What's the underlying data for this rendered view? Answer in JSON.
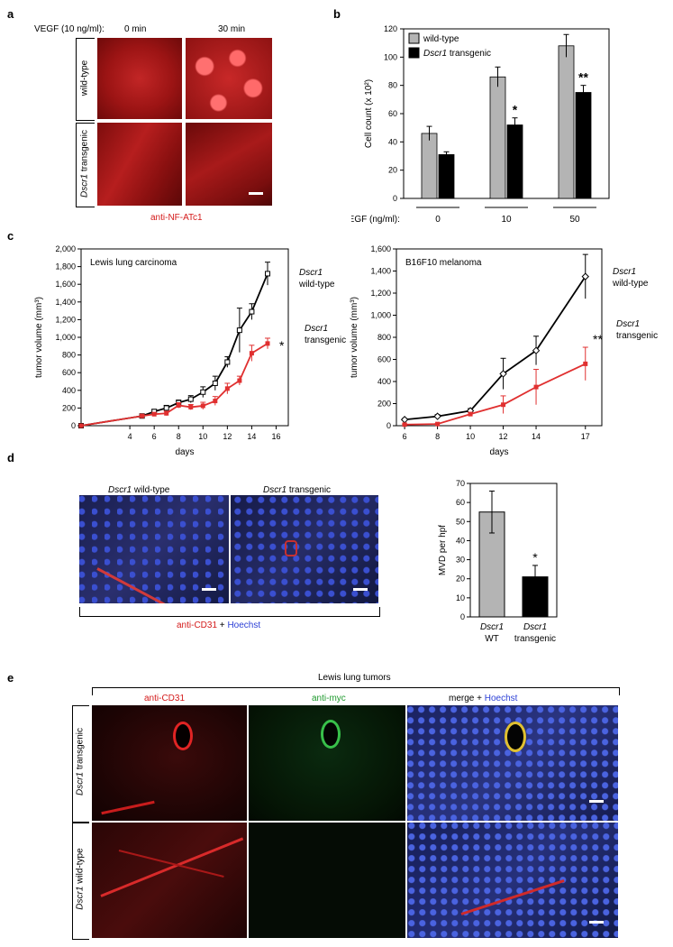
{
  "panels": {
    "a": {
      "letter": "a",
      "vegf_label": "VEGF (10 ng/ml):",
      "time0": "0 min",
      "time30": "30 min",
      "row_wt": "wild-type",
      "row_tg_gene": "Dscr1",
      "row_tg_rest": " transgenic",
      "stain": "anti-NF-ATc1"
    },
    "b": {
      "letter": "b",
      "vegf_axis_label": "VEGF (ng/ml):"
    },
    "c": {
      "letter": "c",
      "lewis_annot_wt_gene": "Dscr1",
      "lewis_annot_wt_rest": "wild-type",
      "lewis_annot_tg_gene": "Dscr1",
      "lewis_annot_tg_rest": "transgenic",
      "lewis_sig": "*",
      "b16_annot_wt_gene": "Dscr1",
      "b16_annot_wt_rest": "wild-type",
      "b16_annot_tg_gene": "Dscr1",
      "b16_annot_tg_rest": "transgenic",
      "b16_sig": "**"
    },
    "d": {
      "letter": "d",
      "img1_gene": "Dscr1",
      "img1_rest": " wild-type",
      "img2_gene": "Dscr1",
      "img2_rest": " transgenic",
      "stain_red": "anti-CD31",
      "stain_plus": " + ",
      "stain_blue": "Hoechst"
    },
    "e": {
      "letter": "e",
      "title": "Lewis lung tumors",
      "col1": "anti-CD31",
      "col2": "anti-myc",
      "col3_a": "merge + ",
      "col3_b": "Hoechst",
      "row1_gene": "Dscr1",
      "row1_rest": "  transgenic",
      "row2_gene": "Dscr1",
      "row2_rest": " wild-type"
    }
  },
  "chart_data": [
    {
      "id": "b",
      "type": "bar",
      "categories": [
        "0",
        "10",
        "50"
      ],
      "series": [
        {
          "name": "wild-type",
          "values": [
            46,
            86,
            108
          ],
          "errors": [
            5,
            7,
            8
          ],
          "color": "#b4b4b4"
        },
        {
          "name": "Dscr1 transgenic",
          "values": [
            31,
            52,
            75
          ],
          "errors": [
            2,
            5,
            5
          ],
          "color": "#000000"
        }
      ],
      "sig": [
        "",
        "*",
        "**"
      ],
      "ylabel": "Cell count (x 10²)",
      "ylim": [
        0,
        120
      ],
      "yticks": [
        "0",
        "20",
        "40",
        "60",
        "80",
        "100",
        "120"
      ],
      "legend_wt": "wild-type",
      "legend_tg_gene": "Dscr1",
      "legend_tg_rest": " transgenic"
    },
    {
      "id": "c-lewis",
      "type": "line",
      "title": "Lewis lung carcinoma",
      "xlabel": "days",
      "ylabel": "tumor volume (mm³)",
      "xlim": [
        0,
        17
      ],
      "ylim": [
        0,
        2000
      ],
      "xticks": [
        "4",
        "6",
        "8",
        "10",
        "12",
        "14",
        "16"
      ],
      "yticks": [
        "0",
        "200",
        "400",
        "600",
        "800",
        "1,000",
        "1,200",
        "1,400",
        "1,600",
        "1,800",
        "2,000"
      ],
      "series": [
        {
          "name": "Dscr1 wild-type",
          "color": "#000000",
          "x": [
            0,
            5,
            6,
            7,
            8,
            9,
            10,
            11,
            12,
            13,
            14,
            15.3
          ],
          "y": [
            0,
            110,
            160,
            200,
            260,
            300,
            380,
            480,
            720,
            1080,
            1290,
            1720
          ],
          "err": [
            0,
            20,
            25,
            30,
            30,
            40,
            60,
            80,
            60,
            250,
            90,
            130
          ]
        },
        {
          "name": "Dscr1 transgenic",
          "color": "#e03030",
          "x": [
            0,
            5,
            6,
            7,
            8,
            9,
            10,
            11,
            12,
            13,
            14,
            15.3
          ],
          "y": [
            0,
            110,
            130,
            140,
            230,
            210,
            225,
            280,
            420,
            510,
            820,
            930
          ],
          "err": [
            0,
            20,
            20,
            25,
            30,
            30,
            40,
            50,
            60,
            50,
            90,
            60
          ]
        }
      ]
    },
    {
      "id": "c-b16",
      "type": "line",
      "title": "B16F10 melanoma",
      "xlabel": "days",
      "ylabel": "tumor volume (mm³)",
      "xlim": [
        5.5,
        18
      ],
      "ylim": [
        0,
        1600
      ],
      "xticks": [
        "6",
        "8",
        "10",
        "12",
        "14",
        "17"
      ],
      "yticks": [
        "0",
        "200",
        "400",
        "600",
        "800",
        "1,000",
        "1,200",
        "1,400",
        "1,600"
      ],
      "series": [
        {
          "name": "Dscr1 wild-type",
          "color": "#000000",
          "x": [
            6,
            8,
            10,
            12,
            14,
            17
          ],
          "y": [
            55,
            85,
            135,
            470,
            680,
            1350
          ],
          "err": [
            10,
            15,
            20,
            140,
            130,
            200
          ]
        },
        {
          "name": "Dscr1 transgenic",
          "color": "#e03030",
          "x": [
            6,
            8,
            10,
            12,
            14,
            17
          ],
          "y": [
            10,
            15,
            105,
            190,
            350,
            560
          ],
          "err": [
            5,
            5,
            15,
            80,
            160,
            150
          ]
        }
      ]
    },
    {
      "id": "d",
      "type": "bar",
      "categories": [
        "Dscr1 WT",
        "Dscr1 transgenic"
      ],
      "cat_gene": [
        "Dscr1",
        "Dscr1"
      ],
      "cat_rest": [
        "WT",
        "transgenic"
      ],
      "values": [
        55,
        21
      ],
      "errors": [
        11,
        6
      ],
      "colors": [
        "#b4b4b4",
        "#000000"
      ],
      "sig": [
        "",
        "*"
      ],
      "ylabel": "MVD per hpf",
      "ylim": [
        0,
        70
      ],
      "yticks": [
        "0",
        "10",
        "20",
        "30",
        "40",
        "50",
        "60",
        "70"
      ]
    }
  ]
}
